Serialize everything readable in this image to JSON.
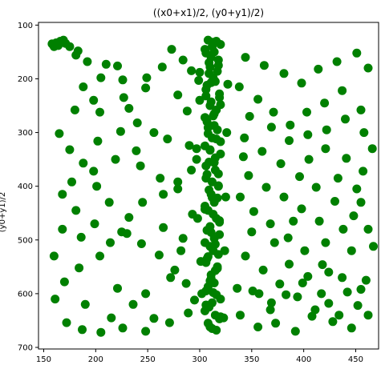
{
  "chart_data": {
    "type": "scatter",
    "title": "((x0+x1)/2, (y0+y1)/2)",
    "xlabel": "",
    "ylabel": "(y0+y1)/2",
    "xlim": [
      145,
      472
    ],
    "ylim": [
      703,
      95
    ],
    "y_inverted": true,
    "x_ticks": [
      150,
      200,
      250,
      300,
      350,
      400,
      450
    ],
    "y_ticks": [
      100,
      200,
      300,
      400,
      500,
      600,
      700
    ],
    "grid": false,
    "marker_color": "#008000",
    "series": [
      {
        "points": [
          [
            162,
            133
          ],
          [
            158,
            135
          ],
          [
            166,
            130
          ],
          [
            171,
            134
          ],
          [
            164,
            138
          ],
          [
            169,
            128
          ],
          [
            175,
            140
          ],
          [
            160,
            140
          ],
          [
            183,
            148
          ],
          [
            181,
            156
          ],
          [
            192,
            168
          ],
          [
            210,
            173
          ],
          [
            221,
            176
          ],
          [
            226,
            202
          ],
          [
            248,
            217
          ],
          [
            273,
            145
          ],
          [
            292,
            185
          ],
          [
            279,
            230
          ],
          [
            288,
            260
          ],
          [
            300,
            188
          ],
          [
            198,
            240
          ],
          [
            204,
            262
          ],
          [
            232,
            255
          ],
          [
            240,
            282
          ],
          [
            256,
            300
          ],
          [
            269,
            312
          ],
          [
            290,
            324
          ],
          [
            239,
            334
          ],
          [
            219,
            350
          ],
          [
            198,
            372
          ],
          [
            177,
            392
          ],
          [
            168,
            415
          ],
          [
            181,
            445
          ],
          [
            199,
            470
          ],
          [
            225,
            485
          ],
          [
            244,
            507
          ],
          [
            261,
            528
          ],
          [
            276,
            556
          ],
          [
            287,
            581
          ],
          [
            295,
            612
          ],
          [
            289,
            636
          ],
          [
            271,
            654
          ],
          [
            248,
            670
          ],
          [
            226,
            664
          ],
          [
            205,
            672
          ],
          [
            187,
            667
          ],
          [
            172,
            654
          ],
          [
            161,
            610
          ],
          [
            170,
            578
          ],
          [
            184,
            552
          ],
          [
            204,
            530
          ],
          [
            214,
            505
          ],
          [
            230,
            488
          ],
          [
            232,
            458
          ],
          [
            245,
            430
          ],
          [
            265,
            415
          ],
          [
            279,
            392
          ],
          [
            292,
            370
          ],
          [
            297,
            350
          ],
          [
            180,
            258
          ],
          [
            165,
            302
          ],
          [
            175,
            332
          ],
          [
            188,
            357
          ],
          [
            201,
            400
          ],
          [
            213,
            430
          ],
          [
            221,
            590
          ],
          [
            236,
            620
          ],
          [
            256,
            646
          ],
          [
            282,
            520
          ],
          [
            265,
            477
          ],
          [
            186,
            495
          ],
          [
            160,
            530
          ],
          [
            190,
            620
          ],
          [
            215,
            645
          ],
          [
            248,
            600
          ],
          [
            272,
            570
          ],
          [
            284,
            497
          ],
          [
            293,
            452
          ],
          [
            168,
            480
          ],
          [
            202,
            316
          ],
          [
            224,
            298
          ],
          [
            243,
            362
          ],
          [
            262,
            385
          ],
          [
            279,
            405
          ],
          [
            188,
            215
          ],
          [
            205,
            198
          ],
          [
            227,
            235
          ],
          [
            249,
            198
          ],
          [
            264,
            178
          ],
          [
            284,
            165
          ],
          [
            299,
            203
          ],
          [
            344,
            160
          ],
          [
            362,
            175
          ],
          [
            381,
            190
          ],
          [
            398,
            208
          ],
          [
            414,
            182
          ],
          [
            432,
            168
          ],
          [
            451,
            152
          ],
          [
            462,
            180
          ],
          [
            338,
            215
          ],
          [
            356,
            238
          ],
          [
            371,
            262
          ],
          [
            387,
            286
          ],
          [
            404,
            304
          ],
          [
            421,
            330
          ],
          [
            441,
            348
          ],
          [
            457,
            372
          ],
          [
            343,
            310
          ],
          [
            360,
            335
          ],
          [
            378,
            358
          ],
          [
            396,
            382
          ],
          [
            412,
            402
          ],
          [
            430,
            428
          ],
          [
            448,
            455
          ],
          [
            462,
            480
          ],
          [
            339,
            420
          ],
          [
            352,
            447
          ],
          [
            368,
            470
          ],
          [
            385,
            496
          ],
          [
            401,
            520
          ],
          [
            418,
            546
          ],
          [
            437,
            570
          ],
          [
            455,
            592
          ],
          [
            344,
            530
          ],
          [
            361,
            556
          ],
          [
            377,
            582
          ],
          [
            394,
            606
          ],
          [
            411,
            630
          ],
          [
            428,
            652
          ],
          [
            446,
            664
          ],
          [
            339,
            640
          ],
          [
            356,
            662
          ],
          [
            373,
            655
          ],
          [
            392,
            670
          ],
          [
            408,
            642
          ],
          [
            424,
            618
          ],
          [
            442,
            597
          ],
          [
            460,
            575
          ],
          [
            351,
            595
          ],
          [
            369,
            617
          ],
          [
            386,
            545
          ],
          [
            404,
            568
          ],
          [
            421,
            505
          ],
          [
            438,
            480
          ],
          [
            455,
            430
          ],
          [
            347,
            380
          ],
          [
            364,
            402
          ],
          [
            381,
            420
          ],
          [
            398,
            442
          ],
          [
            415,
            465
          ],
          [
            433,
            385
          ],
          [
            451,
            405
          ],
          [
            369,
            290
          ],
          [
            386,
            315
          ],
          [
            403,
            262
          ],
          [
            420,
            245
          ],
          [
            437,
            222
          ],
          [
            455,
            258
          ],
          [
            348,
            270
          ],
          [
            458,
            300
          ],
          [
            446,
            520
          ],
          [
            462,
            640
          ],
          [
            424,
            560
          ],
          [
            372,
            505
          ],
          [
            390,
            465
          ],
          [
            405,
            350
          ],
          [
            422,
            295
          ],
          [
            440,
            275
          ],
          [
            466,
            330
          ],
          [
            350,
            485
          ],
          [
            342,
            345
          ],
          [
            357,
            600
          ],
          [
            336,
            590
          ],
          [
            368,
            630
          ],
          [
            383,
            602
          ],
          [
            399,
            580
          ],
          [
            417,
            600
          ],
          [
            434,
            640
          ],
          [
            452,
            622
          ],
          [
            467,
            512
          ],
          [
            308,
            128
          ],
          [
            312,
            132
          ],
          [
            316,
            130
          ],
          [
            320,
            136
          ],
          [
            305,
            145
          ],
          [
            311,
            160
          ],
          [
            318,
            175
          ],
          [
            309,
            190
          ],
          [
            315,
            205
          ],
          [
            306,
            220
          ],
          [
            319,
            235
          ],
          [
            310,
            250
          ],
          [
            314,
            265
          ],
          [
            307,
            280
          ],
          [
            317,
            295
          ],
          [
            312,
            310
          ],
          [
            305,
            325
          ],
          [
            320,
            340
          ],
          [
            309,
            355
          ],
          [
            315,
            370
          ],
          [
            306,
            385
          ],
          [
            318,
            400
          ],
          [
            311,
            415
          ],
          [
            314,
            430
          ],
          [
            308,
            445
          ],
          [
            316,
            460
          ],
          [
            310,
            475
          ],
          [
            319,
            490
          ],
          [
            305,
            505
          ],
          [
            313,
            520
          ],
          [
            307,
            535
          ],
          [
            317,
            550
          ],
          [
            311,
            565
          ],
          [
            314,
            580
          ],
          [
            306,
            595
          ],
          [
            320,
            610
          ],
          [
            309,
            625
          ],
          [
            315,
            640
          ],
          [
            308,
            655
          ],
          [
            316,
            668
          ],
          [
            312,
            140
          ],
          [
            306,
            152
          ],
          [
            318,
            165
          ],
          [
            310,
            178
          ],
          [
            313,
            198
          ],
          [
            307,
            212
          ],
          [
            319,
            228
          ],
          [
            311,
            243
          ],
          [
            316,
            258
          ],
          [
            305,
            272
          ],
          [
            314,
            287
          ],
          [
            308,
            302
          ],
          [
            320,
            317
          ],
          [
            310,
            332
          ],
          [
            315,
            347
          ],
          [
            306,
            362
          ],
          [
            318,
            377
          ],
          [
            312,
            392
          ],
          [
            309,
            407
          ],
          [
            317,
            422
          ],
          [
            305,
            437
          ],
          [
            313,
            452
          ],
          [
            319,
            467
          ],
          [
            307,
            482
          ],
          [
            314,
            497
          ],
          [
            310,
            512
          ],
          [
            318,
            527
          ],
          [
            306,
            542
          ],
          [
            315,
            557
          ],
          [
            311,
            572
          ],
          [
            308,
            587
          ],
          [
            316,
            602
          ],
          [
            312,
            617
          ],
          [
            305,
            632
          ],
          [
            319,
            647
          ],
          [
            310,
            662
          ],
          [
            314,
            150
          ],
          [
            309,
            170
          ],
          [
            317,
            186
          ],
          [
            311,
            207
          ],
          [
            306,
            232
          ],
          [
            320,
            248
          ],
          [
            313,
            269
          ],
          [
            308,
            291
          ],
          [
            316,
            312
          ],
          [
            310,
            333
          ],
          [
            314,
            356
          ],
          [
            307,
            378
          ],
          [
            318,
            399
          ],
          [
            312,
            421
          ],
          [
            305,
            443
          ],
          [
            319,
            464
          ],
          [
            311,
            486
          ],
          [
            315,
            508
          ],
          [
            308,
            531
          ],
          [
            317,
            553
          ],
          [
            310,
            576
          ],
          [
            313,
            598
          ],
          [
            306,
            621
          ],
          [
            320,
            643
          ],
          [
            312,
            665
          ],
          [
            300,
            240
          ],
          [
            298,
            460
          ],
          [
            324,
            520
          ],
          [
            326,
            300
          ],
          [
            302,
            600
          ],
          [
            325,
            420
          ],
          [
            297,
            330
          ],
          [
            327,
            210
          ],
          [
            301,
            540
          ],
          [
            323,
            645
          ]
        ]
      }
    ]
  }
}
